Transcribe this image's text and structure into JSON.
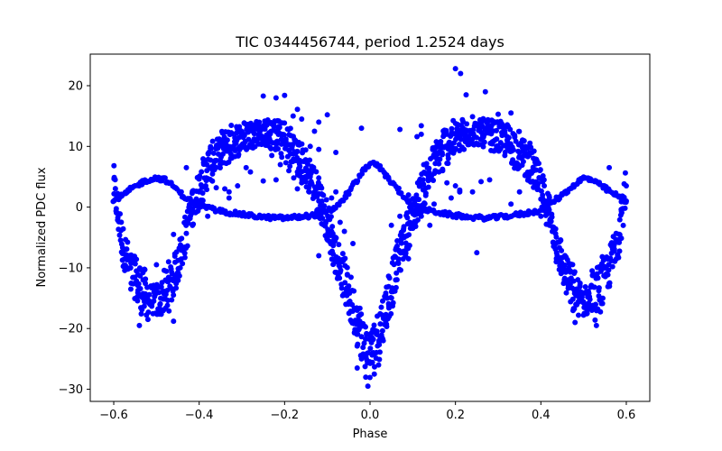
{
  "chart_data": {
    "type": "scatter",
    "title": "TIC 0344456744, period 1.2524 days",
    "xlabel": "Phase",
    "ylabel": "Normalized PDC flux",
    "xlim": [
      -0.655,
      0.655
    ],
    "ylim": [
      -32.0,
      25.2
    ],
    "xticks": [
      -0.6,
      -0.4,
      -0.2,
      0.0,
      0.2,
      0.4,
      0.6
    ],
    "xtick_labels": [
      "−0.6",
      "−0.4",
      "−0.2",
      "0.0",
      "0.2",
      "0.4",
      "0.6"
    ],
    "yticks": [
      -30,
      -20,
      -10,
      0,
      10,
      20
    ],
    "ytick_labels": [
      "−30",
      "−20",
      "−10",
      "0",
      "10",
      "20"
    ],
    "grid": false,
    "marker_color": "#0000ff",
    "series": [
      {
        "role": "main light curve (dense band, phase -0.6 to 0.6)",
        "points": [
          [
            -0.6,
            3.5
          ],
          [
            -0.58,
            -6.0
          ],
          [
            -0.56,
            -10.5
          ],
          [
            -0.54,
            -13.0
          ],
          [
            -0.52,
            -15.0
          ],
          [
            -0.5,
            -15.5
          ],
          [
            -0.48,
            -14.5
          ],
          [
            -0.46,
            -11.5
          ],
          [
            -0.44,
            -7.0
          ],
          [
            -0.42,
            -1.0
          ],
          [
            -0.4,
            3.0
          ],
          [
            -0.38,
            6.5
          ],
          [
            -0.36,
            8.5
          ],
          [
            -0.34,
            9.8
          ],
          [
            -0.32,
            10.8
          ],
          [
            -0.3,
            11.5
          ],
          [
            -0.28,
            12.0
          ],
          [
            -0.26,
            12.3
          ],
          [
            -0.24,
            12.2
          ],
          [
            -0.22,
            11.7
          ],
          [
            -0.2,
            10.8
          ],
          [
            -0.18,
            9.3
          ],
          [
            -0.16,
            7.3
          ],
          [
            -0.14,
            5.0
          ],
          [
            -0.12,
            2.0
          ],
          [
            -0.1,
            -2.5
          ],
          [
            -0.08,
            -7.5
          ],
          [
            -0.06,
            -12.0
          ],
          [
            -0.04,
            -16.5
          ],
          [
            -0.02,
            -21.0
          ],
          [
            0.0,
            -24.5
          ],
          [
            0.02,
            -21.0
          ],
          [
            0.04,
            -16.0
          ],
          [
            0.06,
            -10.0
          ],
          [
            0.08,
            -5.5
          ],
          [
            0.1,
            -1.5
          ],
          [
            0.12,
            2.5
          ],
          [
            0.14,
            5.8
          ],
          [
            0.16,
            8.5
          ],
          [
            0.18,
            10.2
          ],
          [
            0.2,
            11.3
          ],
          [
            0.22,
            12.0
          ],
          [
            0.24,
            12.2
          ],
          [
            0.26,
            12.3
          ],
          [
            0.28,
            12.0
          ],
          [
            0.3,
            11.5
          ],
          [
            0.32,
            10.8
          ],
          [
            0.34,
            9.8
          ],
          [
            0.36,
            8.5
          ],
          [
            0.38,
            6.5
          ],
          [
            0.4,
            3.0
          ],
          [
            0.42,
            -1.0
          ],
          [
            0.44,
            -7.0
          ],
          [
            0.46,
            -11.5
          ],
          [
            0.48,
            -14.5
          ],
          [
            0.5,
            -15.5
          ],
          [
            0.52,
            -15.0
          ],
          [
            0.54,
            -13.0
          ],
          [
            0.56,
            -10.0
          ],
          [
            0.58,
            -5.0
          ],
          [
            0.6,
            3.5
          ]
        ]
      },
      {
        "role": "secondary thin curve",
        "points": [
          [
            -0.6,
            1.0
          ],
          [
            -0.58,
            1.9
          ],
          [
            -0.56,
            2.9
          ],
          [
            -0.54,
            3.8
          ],
          [
            -0.52,
            4.5
          ],
          [
            -0.5,
            4.8
          ],
          [
            -0.48,
            4.5
          ],
          [
            -0.46,
            3.4
          ],
          [
            -0.44,
            2.0
          ],
          [
            -0.42,
            1.0
          ],
          [
            -0.4,
            0.3
          ],
          [
            -0.36,
            -0.5
          ],
          [
            -0.32,
            -1.0
          ],
          [
            -0.28,
            -1.4
          ],
          [
            -0.24,
            -1.7
          ],
          [
            -0.2,
            -1.8
          ],
          [
            -0.16,
            -1.6
          ],
          [
            -0.12,
            -1.2
          ],
          [
            -0.1,
            -0.9
          ],
          [
            -0.08,
            0.0
          ],
          [
            -0.06,
            1.5
          ],
          [
            -0.04,
            3.5
          ],
          [
            -0.02,
            5.5
          ],
          [
            0.0,
            7.2
          ],
          [
            0.02,
            6.8
          ],
          [
            0.04,
            5.0
          ],
          [
            0.06,
            3.3
          ],
          [
            0.08,
            1.7
          ],
          [
            0.1,
            0.4
          ],
          [
            0.12,
            -0.3
          ],
          [
            0.16,
            -0.9
          ],
          [
            0.2,
            -1.4
          ],
          [
            0.24,
            -1.7
          ],
          [
            0.28,
            -1.8
          ],
          [
            0.32,
            -1.5
          ],
          [
            0.36,
            -1.1
          ],
          [
            0.4,
            -0.5
          ],
          [
            0.42,
            0.4
          ],
          [
            0.44,
            1.5
          ],
          [
            0.46,
            2.6
          ],
          [
            0.48,
            3.8
          ],
          [
            0.5,
            4.8
          ],
          [
            0.52,
            4.5
          ],
          [
            0.54,
            3.6
          ],
          [
            0.56,
            2.6
          ],
          [
            0.58,
            1.8
          ],
          [
            0.6,
            1.0
          ]
        ]
      },
      {
        "role": "scattered outliers",
        "points": [
          [
            0.2,
            22.8
          ],
          [
            0.212,
            22.0
          ],
          [
            0.27,
            19.0
          ],
          [
            0.225,
            18.5
          ],
          [
            -0.2,
            18.4
          ],
          [
            -0.22,
            18.0
          ],
          [
            -0.25,
            18.3
          ],
          [
            -0.18,
            15.0
          ],
          [
            -0.16,
            14.5
          ],
          [
            -0.17,
            16.1
          ],
          [
            0.3,
            15.3
          ],
          [
            0.33,
            15.5
          ],
          [
            -0.1,
            15.2
          ],
          [
            -0.12,
            14.0
          ],
          [
            0.12,
            13.4
          ],
          [
            0.24,
            14.9
          ],
          [
            -0.02,
            13.0
          ],
          [
            0.07,
            12.8
          ],
          [
            0.12,
            12.0
          ],
          [
            0.11,
            11.6
          ],
          [
            -0.13,
            12.5
          ],
          [
            -0.14,
            10.0
          ],
          [
            -0.12,
            9.5
          ],
          [
            -0.08,
            9.0
          ],
          [
            -0.23,
            8.5
          ],
          [
            -0.21,
            7.0
          ],
          [
            -0.19,
            6.0
          ],
          [
            -0.17,
            5.8
          ],
          [
            -0.16,
            4.0
          ],
          [
            -0.17,
            3.0
          ],
          [
            -0.14,
            5.0
          ],
          [
            -0.22,
            4.5
          ],
          [
            -0.25,
            4.3
          ],
          [
            -0.12,
            4.8
          ],
          [
            -0.11,
            2.0
          ],
          [
            -0.09,
            1.5
          ],
          [
            -0.08,
            2.5
          ],
          [
            -0.15,
            4.2
          ],
          [
            -0.4,
            2.5
          ],
          [
            -0.34,
            3.0
          ],
          [
            -0.43,
            6.5
          ],
          [
            -0.33,
            2.5
          ],
          [
            -0.36,
            3.2
          ],
          [
            -0.33,
            1.5
          ],
          [
            0.17,
            6.0
          ],
          [
            0.18,
            4.0
          ],
          [
            0.2,
            3.5
          ],
          [
            0.21,
            2.8
          ],
          [
            0.24,
            2.5
          ],
          [
            0.26,
            4.2
          ],
          [
            0.28,
            4.5
          ],
          [
            0.19,
            1.5
          ],
          [
            0.15,
            0.5
          ],
          [
            0.12,
            -1.5
          ],
          [
            0.14,
            -3.0
          ],
          [
            0.07,
            -1.5
          ],
          [
            0.08,
            -5.0
          ],
          [
            0.09,
            -8.5
          ],
          [
            0.05,
            -3.0
          ],
          [
            0.06,
            -12.0
          ],
          [
            0.04,
            -15.0
          ],
          [
            -0.07,
            -2.5
          ],
          [
            -0.06,
            -4.0
          ],
          [
            -0.04,
            -6.0
          ],
          [
            -0.1,
            -5.0
          ],
          [
            -0.09,
            -4.0
          ],
          [
            -0.12,
            -8.0
          ],
          [
            -0.38,
            -1.5
          ],
          [
            0.33,
            0.5
          ],
          [
            0.35,
            2.5
          ],
          [
            0.4,
            -1.5
          ],
          [
            0.42,
            -3.0
          ],
          [
            -0.46,
            -4.5
          ],
          [
            -0.5,
            -9.5
          ],
          [
            0.52,
            -10.5
          ],
          [
            0.58,
            -8.0
          ],
          [
            0.56,
            6.5
          ],
          [
            -0.54,
            -19.5
          ],
          [
            0.53,
            -19.5
          ],
          [
            -0.46,
            -18.8
          ],
          [
            0.48,
            -19.0
          ],
          [
            -0.52,
            -18.5
          ],
          [
            0.5,
            -17.8
          ],
          [
            -0.56,
            -13.5
          ],
          [
            -0.03,
            -26.5
          ],
          [
            -0.01,
            -28.0
          ],
          [
            0.01,
            -27.5
          ],
          [
            -0.005,
            -29.5
          ],
          [
            0.02,
            -26.0
          ],
          [
            -0.02,
            -25.0
          ],
          [
            0.045,
            -18.0
          ],
          [
            -0.03,
            -17.0
          ],
          [
            -0.05,
            -13.0
          ],
          [
            0.25,
            -7.5
          ],
          [
            0.21,
            2.5
          ],
          [
            -0.29,
            6.5
          ],
          [
            -0.28,
            5.8
          ],
          [
            -0.31,
            3.5
          ],
          [
            0.22,
            9.5
          ],
          [
            0.3,
            10.0
          ],
          [
            0.35,
            9.0
          ],
          [
            0.09,
            2.0
          ],
          [
            -0.12,
            1.0
          ],
          [
            0.1,
            -3.5
          ],
          [
            0.06,
            -7.0
          ]
        ]
      }
    ]
  }
}
